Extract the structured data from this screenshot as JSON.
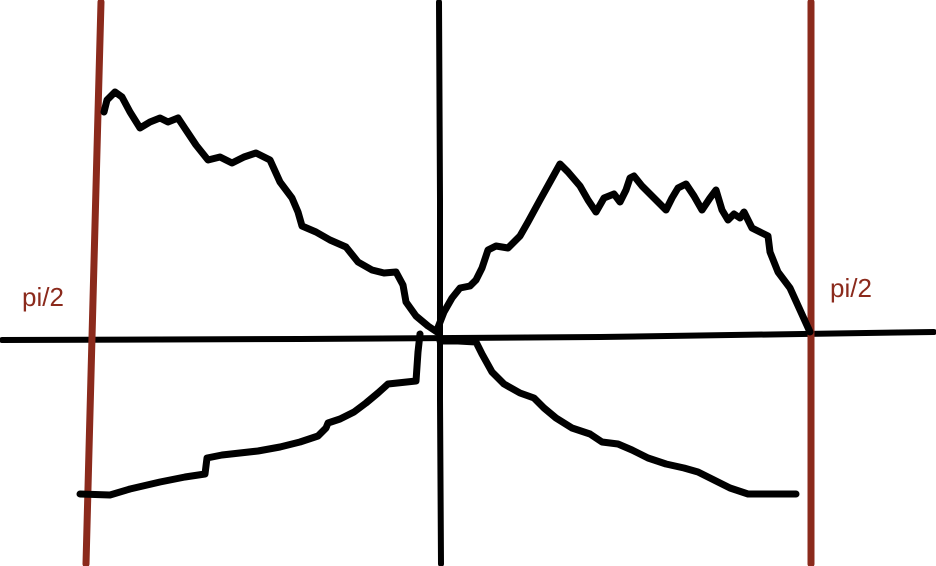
{
  "diagram": {
    "colors": {
      "ink": "#000000",
      "boundary": "#8b2a1c",
      "background": "#ffffff"
    },
    "boundaries": [
      {
        "name": "left-boundary",
        "label": "pi/2"
      },
      {
        "name": "right-boundary",
        "label": "pi/2"
      }
    ]
  }
}
